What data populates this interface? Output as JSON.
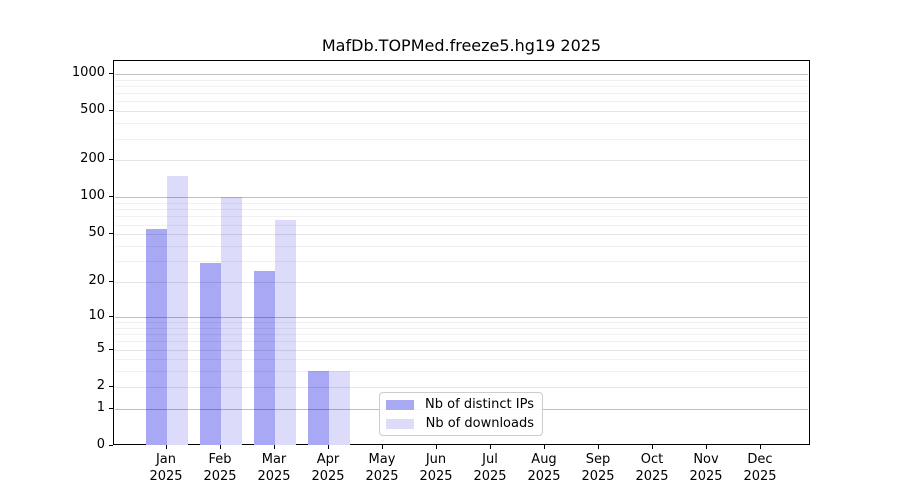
{
  "chart_data": {
    "type": "bar",
    "title": "MafDb.TOPMed.freeze5.hg19 2025",
    "categories": [
      "Jan",
      "Feb",
      "Mar",
      "Apr",
      "May",
      "Jun",
      "Jul",
      "Aug",
      "Sep",
      "Oct",
      "Nov",
      "Dec"
    ],
    "year_label": "2025",
    "series": [
      {
        "name": "Nb of distinct IPs",
        "color": "#a8a8f5",
        "values": [
          55,
          29,
          25,
          3,
          0,
          0,
          0,
          0,
          0,
          0,
          0,
          0
        ]
      },
      {
        "name": "Nb of downloads",
        "color": "#dcdcfa",
        "values": [
          150,
          100,
          65,
          3,
          0,
          0,
          0,
          0,
          0,
          0,
          0,
          0
        ]
      }
    ],
    "y_scale": "log1p",
    "y_ticks": [
      1000,
      500,
      200,
      100,
      50,
      20,
      10,
      5,
      2,
      1,
      0
    ],
    "ylim": [
      0,
      1270
    ],
    "grid": true,
    "legend_position": "lower-center"
  }
}
